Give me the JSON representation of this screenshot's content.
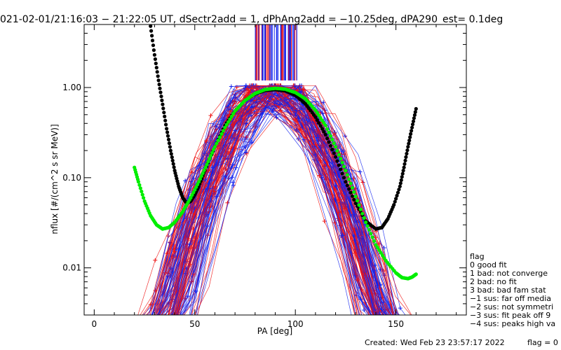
{
  "chart_data": {
    "type": "scatter",
    "title": "021-02-01/21:16:03 − 21:22:05 UT, dSectr2add = 1, dPhAng2add = −10.25deg, dPA290_est=    0.1deg",
    "xlabel": "PA [deg]",
    "ylabel": "nflux [#/(cm^2 s sr MeV)]",
    "xlim": [
      -5,
      185
    ],
    "ylim": [
      0.003,
      5.0
    ],
    "yscale": "log",
    "x_ticks": [
      0,
      50,
      100,
      150
    ],
    "y_ticks": [
      {
        "value": 0.01,
        "label": "0.01"
      },
      {
        "value": 0.1,
        "label": "0.10"
      },
      {
        "value": 1.0,
        "label": "1.00"
      }
    ],
    "series": [
      {
        "color": "#000000",
        "x": [
          28,
          30,
          32,
          34,
          36,
          38,
          40,
          42,
          44,
          46,
          48,
          50,
          52,
          55,
          60,
          65,
          70,
          75,
          80,
          85,
          90,
          95,
          100,
          105,
          110,
          115,
          120,
          125,
          130,
          135,
          140,
          143,
          146,
          149,
          152,
          154,
          156,
          158,
          160
        ],
        "y": [
          4.8,
          2.3,
          1.2,
          0.65,
          0.35,
          0.2,
          0.12,
          0.08,
          0.06,
          0.052,
          0.055,
          0.065,
          0.08,
          0.12,
          0.22,
          0.38,
          0.55,
          0.72,
          0.85,
          0.93,
          0.95,
          0.92,
          0.82,
          0.66,
          0.47,
          0.3,
          0.17,
          0.09,
          0.052,
          0.033,
          0.027,
          0.028,
          0.035,
          0.05,
          0.08,
          0.13,
          0.22,
          0.36,
          0.58
        ]
      },
      {
        "color": "#00ee00",
        "x": [
          20,
          22,
          25,
          28,
          31,
          34,
          37,
          40,
          44,
          48,
          52,
          56,
          60,
          65,
          70,
          75,
          80,
          85,
          90,
          95,
          100,
          105,
          110,
          115,
          120,
          125,
          130,
          135,
          140,
          145,
          150,
          153,
          156,
          158,
          160
        ],
        "y": [
          0.13,
          0.09,
          0.055,
          0.038,
          0.03,
          0.027,
          0.028,
          0.032,
          0.042,
          0.06,
          0.09,
          0.14,
          0.22,
          0.36,
          0.55,
          0.72,
          0.86,
          0.95,
          0.98,
          0.96,
          0.88,
          0.75,
          0.56,
          0.38,
          0.22,
          0.12,
          0.062,
          0.032,
          0.018,
          0.012,
          0.0088,
          0.0078,
          0.0076,
          0.0079,
          0.0085
        ]
      }
    ]
  },
  "legend": {
    "title": "flag",
    "items": [
      " 0 good fit",
      " 1 bad: not converge",
      " 2 bad: no fit",
      " 3 bad: bad fam stat",
      "−1 sus: far off media",
      "−2 sus: not symmetri",
      "−3 sus: fit peak off 9",
      "−4 sus: peaks high va"
    ]
  },
  "footer": {
    "created": "Created: Wed Feb 23 23:57:17 2022",
    "flag": "flag = 0"
  }
}
